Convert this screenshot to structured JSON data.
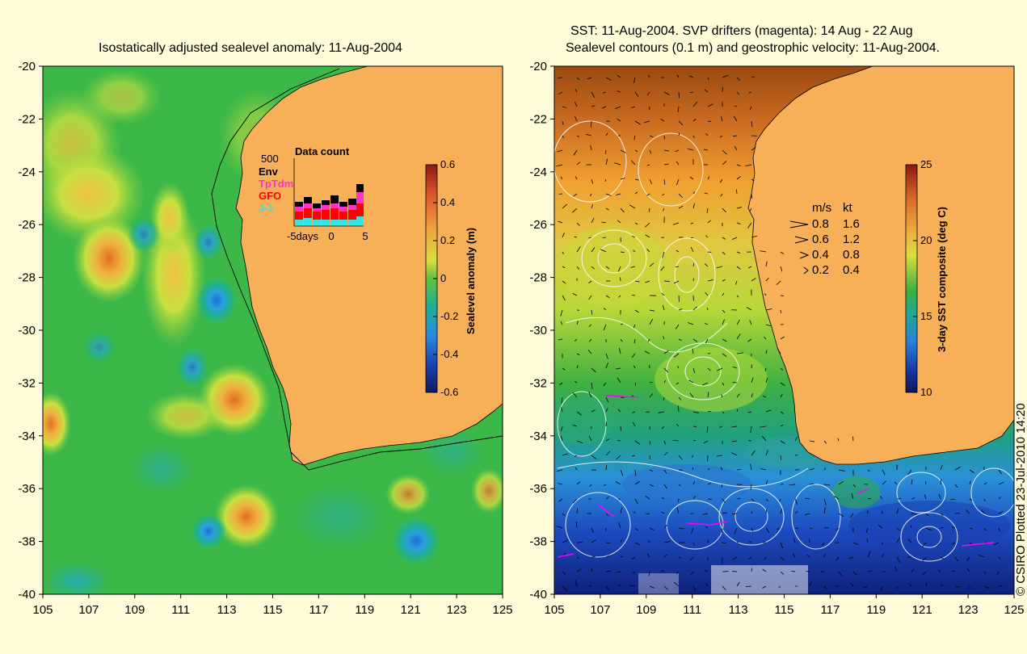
{
  "left_panel": {
    "title": "Isostatically adjusted sealevel anomaly: 11-Aug-2004",
    "y_ticks": [
      "-20",
      "-22",
      "-24",
      "-26",
      "-28",
      "-30",
      "-32",
      "-34",
      "-36",
      "-38",
      "-40"
    ],
    "x_ticks": [
      "105",
      "107",
      "109",
      "111",
      "113",
      "115",
      "117",
      "119",
      "121",
      "123",
      "125"
    ],
    "colorbar": {
      "label": "Sealevel anomaly (m)",
      "ticks": [
        "0.6",
        "0.4",
        "0.2",
        "0",
        "-0.2",
        "-0.4",
        "-0.6"
      ],
      "min": -0.6,
      "max": 0.6
    },
    "data_count": {
      "title": "Data count",
      "max_label": "500",
      "x_ticks": [
        "-5days",
        "0",
        "5"
      ],
      "legend": [
        {
          "name": "Env",
          "color": "#000000"
        },
        {
          "name": "TpTdm",
          "color": "#ff33cc"
        },
        {
          "name": "GFO",
          "color": "#ff0000"
        },
        {
          "name": "J-1",
          "color": "#33e6e6"
        }
      ]
    }
  },
  "right_panel": {
    "title_line1": "SST: 11-Aug-2004. SVP drifters (magenta): 14 Aug - 22 Aug",
    "title_line2": "Sealevel contours (0.1 m) and geostrophic velocity: 11-Aug-2004.",
    "y_ticks": [
      "-20",
      "-22",
      "-24",
      "-26",
      "-28",
      "-30",
      "-32",
      "-34",
      "-36",
      "-38",
      "-40"
    ],
    "x_ticks": [
      "105",
      "107",
      "109",
      "111",
      "113",
      "115",
      "117",
      "119",
      "121",
      "123",
      "125"
    ],
    "colorbar": {
      "label": "3-day SST composite (deg C)",
      "ticks": [
        "25",
        "20",
        "15",
        "10"
      ],
      "min": 10,
      "max": 25
    },
    "velocity_legend": {
      "header_ms": "m/s",
      "header_kt": "kt",
      "rows": [
        {
          "ms": "0.8",
          "kt": "1.6"
        },
        {
          "ms": "0.6",
          "kt": "1.2"
        },
        {
          "ms": "0.4",
          "kt": "0.8"
        },
        {
          "ms": "0.2",
          "kt": "0.4"
        }
      ]
    }
  },
  "copyright": "© CSIRO Plotted 23-Jul-2010 14:20",
  "colors": {
    "background": "#fffcd9",
    "land": "#f8b058",
    "ocean_base": "#2ab04a"
  }
}
